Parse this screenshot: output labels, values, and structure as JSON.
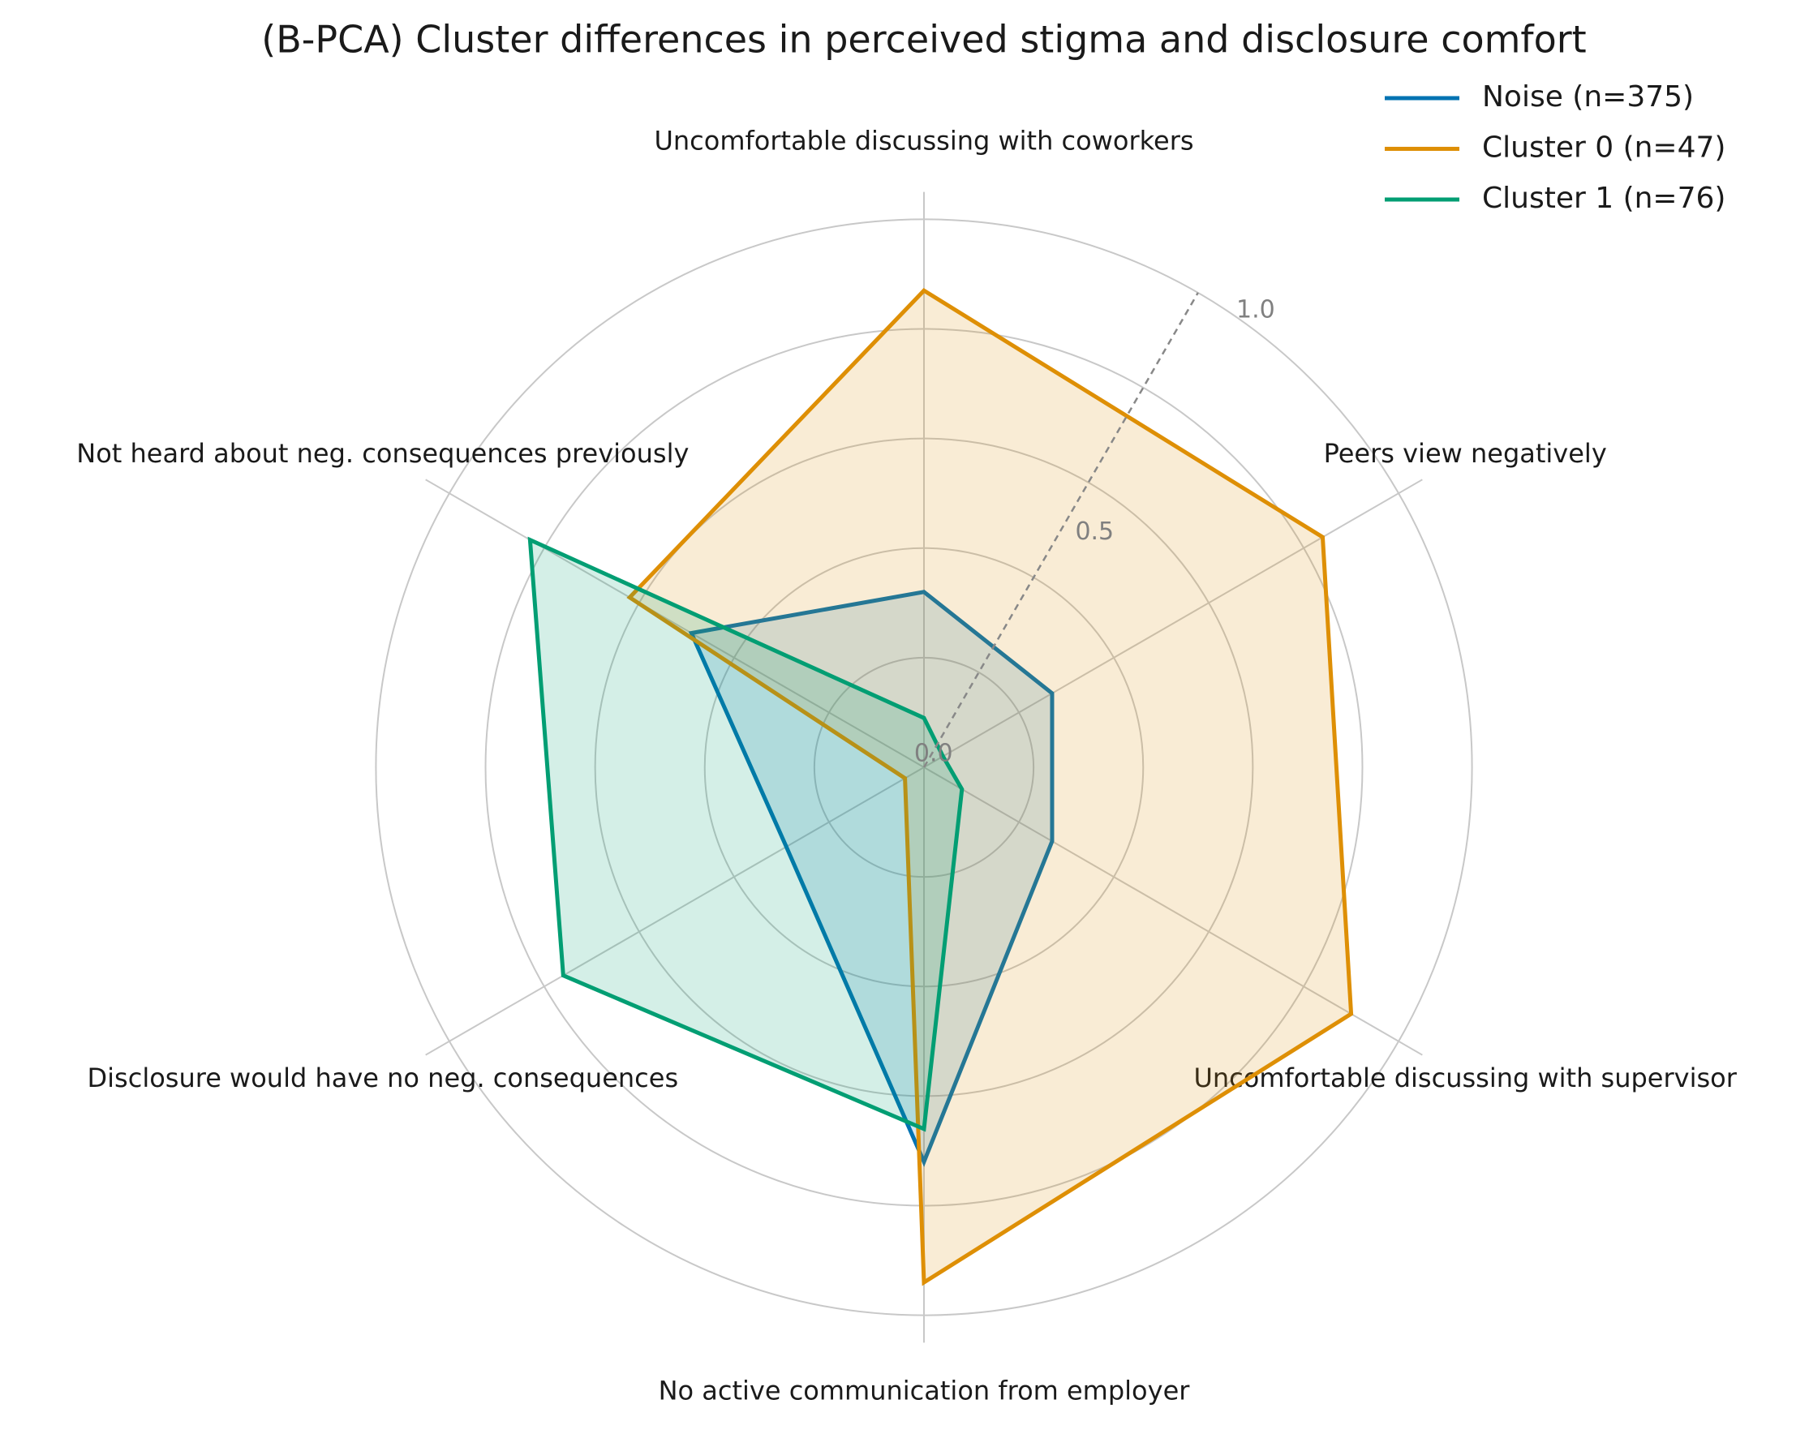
{
  "chart_data": {
    "type": "radar",
    "title": "(B-PCA) Cluster differences in perceived stigma and disclosure comfort",
    "categories": [
      "Uncomfortable discussing with coworkers",
      "Peers view negatively",
      "Uncomfortable discussing with supervisor",
      "No active communication from employer",
      "Disclosure would have no neg. consequences",
      "Not heard about neg. consequences previously"
    ],
    "series": [
      {
        "name": "Noise (n=375)",
        "color": "#0173b2",
        "values": [
          0.32,
          0.27,
          0.27,
          0.72,
          0.29,
          0.49
        ]
      },
      {
        "name": "Cluster 0 (n=47)",
        "color": "#de8f05",
        "values": [
          0.87,
          0.84,
          0.9,
          0.94,
          0.04,
          0.62
        ]
      },
      {
        "name": "Cluster 1 (n=76)",
        "color": "#029e73",
        "values": [
          0.09,
          0.04,
          0.08,
          0.66,
          0.76,
          0.83
        ]
      }
    ],
    "ylim": [
      0,
      1.05
    ],
    "yticks": [
      {
        "value": 0,
        "label": "0.0"
      },
      0.5,
      {
        "value": 1,
        "label": "1.0"
      }
    ],
    "rgrid": [
      0.2,
      0.4,
      0.6,
      0.8,
      1.0
    ],
    "grid": true,
    "legend": "upper right"
  }
}
